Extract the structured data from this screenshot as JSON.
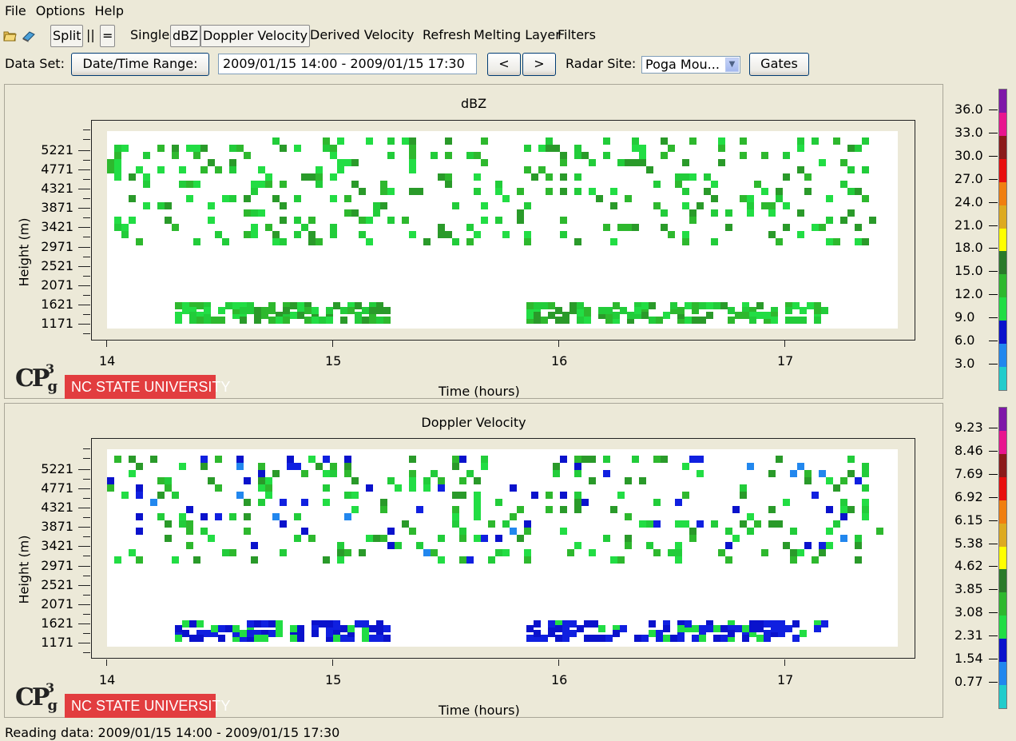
{
  "menubar": {
    "items": [
      "File",
      "Options",
      "Help"
    ]
  },
  "toolbar": {
    "open_icon": "open-folder-icon",
    "book_icon": "book-icon",
    "split_label": "Split",
    "sidebyside_label": "||",
    "stacked_label": "=",
    "single_label": "Single",
    "dbz_label": "dBZ",
    "doppler_label": "Doppler Velocity",
    "derived_label": "Derived Velocity",
    "refresh_label": "Refresh",
    "melting_label": "Melting Layer",
    "filters_label": "Filters"
  },
  "datarow": {
    "dataset_label": "Data Set:",
    "datetime_button": "Date/Time Range:",
    "datetime_value": "2009/01/15 14:00 - 2009/01/15 17:30",
    "prev_button": "<",
    "next_button": ">",
    "radar_label": "Radar Site:",
    "radar_value": "Poga Mou...",
    "gates_button": "Gates"
  },
  "logo": {
    "cp_text": "CP",
    "g_text": "g",
    "sup_text": "3",
    "ncsu_text": "NC STATE UNIVERSITY"
  },
  "chart_data": [
    {
      "type": "heatmap",
      "title": "dBZ",
      "xlabel": "Time (hours)",
      "ylabel": "Height (m)",
      "xticks": [
        "14",
        "15",
        "16",
        "17"
      ],
      "yticks": [
        "5221",
        "4771",
        "4321",
        "3871",
        "3421",
        "2971",
        "2521",
        "2071",
        "1621",
        "1171"
      ],
      "xlim": [
        14.0,
        17.5
      ],
      "colorbar_labels": [
        "36.0",
        "33.0",
        "30.0",
        "27.0",
        "24.0",
        "21.0",
        "18.0",
        "15.0",
        "12.0",
        "9.0",
        "6.0",
        "3.0"
      ],
      "colorbar_colors": [
        "#7f17a8",
        "#e8168f",
        "#8b1a1a",
        "#e80e0e",
        "#f07f10",
        "#ddaa20",
        "#ffff00",
        "#2a7a2a",
        "#2eb82e",
        "#22dd44",
        "#0a12cc",
        "#2287ee",
        "#22cccc"
      ]
    },
    {
      "type": "heatmap",
      "title": "Doppler Velocity",
      "xlabel": "Time (hours)",
      "ylabel": "Height (m)",
      "xticks": [
        "14",
        "15",
        "16",
        "17"
      ],
      "yticks": [
        "5221",
        "4771",
        "4321",
        "3871",
        "3421",
        "2971",
        "2521",
        "2071",
        "1621",
        "1171"
      ],
      "xlim": [
        14.0,
        17.5
      ],
      "colorbar_labels": [
        "9.23",
        "8.46",
        "7.69",
        "6.92",
        "6.15",
        "5.38",
        "4.62",
        "3.85",
        "3.08",
        "2.31",
        "1.54",
        "0.77"
      ],
      "colorbar_colors": [
        "#7f17a8",
        "#e8168f",
        "#8b1a1a",
        "#e80e0e",
        "#f07f10",
        "#ddaa20",
        "#ffff00",
        "#2a7a2a",
        "#2eb82e",
        "#22dd44",
        "#0a12cc",
        "#2287ee",
        "#22cccc"
      ]
    }
  ],
  "status": {
    "text": "Reading data: 2009/01/15 14:00 - 2009/01/15 17:30"
  }
}
